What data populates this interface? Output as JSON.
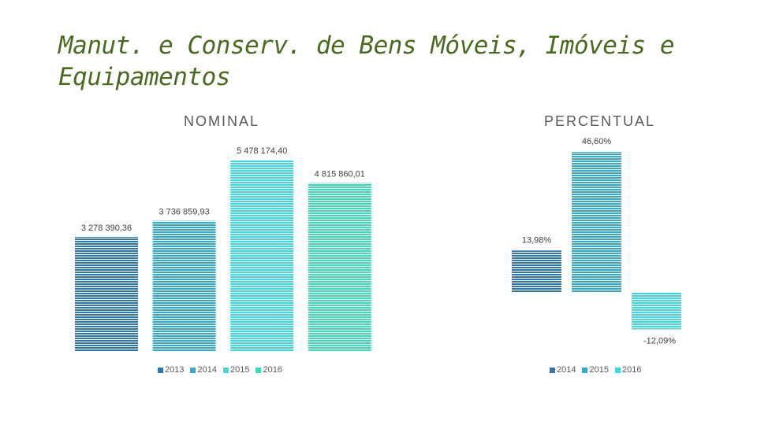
{
  "slide": {
    "title": "Manut. e Conserv. de Bens Móveis, Imóveis e Equipamentos"
  },
  "colors": {
    "y2013": "#2e75b6",
    "y2014": "#33aacb",
    "y2015": "#3fd8dc",
    "y2016": "#3ed8b4"
  },
  "chart_data": [
    {
      "type": "bar",
      "title": "NOMINAL",
      "categories": [
        "2013",
        "2014",
        "2015",
        "2016"
      ],
      "values": [
        3278390.36,
        3736859.93,
        5478174.4,
        4815860.01
      ],
      "value_labels": [
        "3 278 390,36",
        "3 736 859,93",
        "5 478 174,40",
        "4 815 860,01"
      ],
      "legend": [
        "2013",
        "2014",
        "2015",
        "2016"
      ],
      "legend_position": "bottom",
      "ylim": [
        0,
        5478174.4
      ],
      "grid": false
    },
    {
      "type": "bar",
      "title": "PERCENTUAL",
      "categories": [
        "2014",
        "2015",
        "2016"
      ],
      "values": [
        13.98,
        46.6,
        -12.09
      ],
      "value_labels": [
        "13,98%",
        "46,60%",
        "-12,09%"
      ],
      "legend": [
        "2014",
        "2015",
        "2016"
      ],
      "legend_position": "bottom",
      "ylim": [
        -12.09,
        46.6
      ],
      "grid": false
    }
  ]
}
